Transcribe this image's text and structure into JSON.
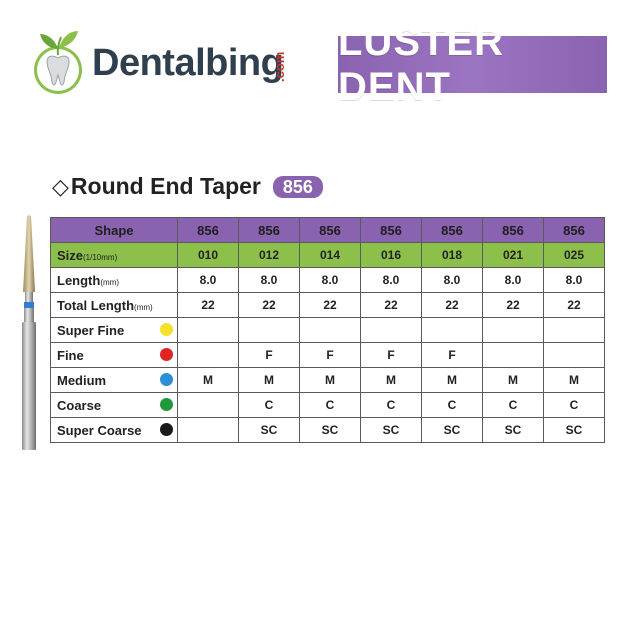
{
  "logos": {
    "dentalbing": {
      "word": "Dentalbing",
      "suffix": ".com"
    },
    "lusterdent": {
      "word": "LUSTER DENT"
    }
  },
  "title": {
    "text": "Round End Taper",
    "badge": "856"
  },
  "table": {
    "shape": {
      "label": "Shape",
      "values": [
        "856",
        "856",
        "856",
        "856",
        "856",
        "856",
        "856"
      ]
    },
    "size": {
      "label": "Size",
      "unit": "(1/10mm)",
      "values": [
        "010",
        "012",
        "014",
        "016",
        "018",
        "021",
        "025"
      ]
    },
    "length": {
      "label": "Length",
      "unit": "(mm)",
      "values": [
        "8.0",
        "8.0",
        "8.0",
        "8.0",
        "8.0",
        "8.0",
        "8.0"
      ]
    },
    "total_length": {
      "label": "Total Length",
      "unit": "(mm)",
      "values": [
        "22",
        "22",
        "22",
        "22",
        "22",
        "22",
        "22"
      ]
    },
    "grits": [
      {
        "label": "Super Fine",
        "color": "#f2e22b",
        "values": [
          "",
          "",
          "",
          "",
          "",
          "",
          ""
        ]
      },
      {
        "label": "Fine",
        "color": "#e02424",
        "values": [
          "",
          "F",
          "F",
          "F",
          "F",
          "",
          ""
        ]
      },
      {
        "label": "Medium",
        "color": "#2a8fd6",
        "values": [
          "M",
          "M",
          "M",
          "M",
          "M",
          "M",
          "M"
        ]
      },
      {
        "label": "Coarse",
        "color": "#1f9a3a",
        "values": [
          "",
          "C",
          "C",
          "C",
          "C",
          "C",
          "C"
        ]
      },
      {
        "label": "Super Coarse",
        "color": "#1a1a1a",
        "values": [
          "",
          "SC",
          "SC",
          "SC",
          "SC",
          "SC",
          "SC"
        ]
      }
    ]
  }
}
